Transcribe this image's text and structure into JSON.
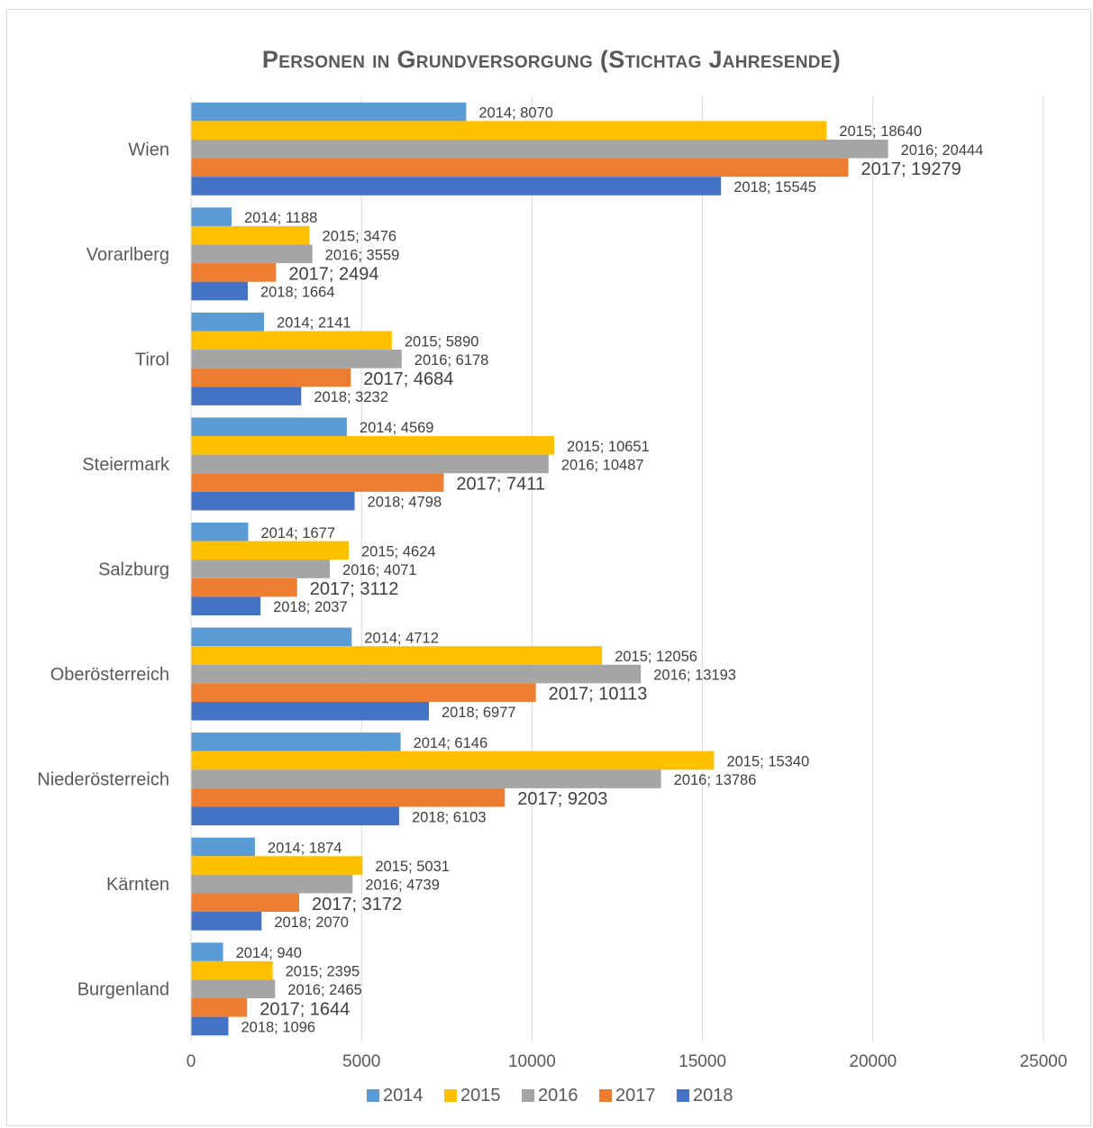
{
  "chart_data": {
    "type": "bar",
    "orientation": "horizontal",
    "title": "Personen in Grundversorgung (Stichtag Jahresende)",
    "categories": [
      "Wien",
      "Vorarlberg",
      "Tirol",
      "Steiermark",
      "Salzburg",
      "Oberösterreich",
      "Niederösterreich",
      "Kärnten",
      "Burgenland"
    ],
    "series": [
      {
        "name": "2014",
        "color": "#5b9bd5",
        "values": [
          8070,
          1188,
          2141,
          4569,
          1677,
          4712,
          6146,
          1874,
          940
        ]
      },
      {
        "name": "2015",
        "color": "#ffc000",
        "values": [
          18640,
          3476,
          5890,
          10651,
          4624,
          12056,
          15340,
          5031,
          2395
        ]
      },
      {
        "name": "2016",
        "color": "#a5a5a5",
        "values": [
          20444,
          3559,
          6178,
          10487,
          4071,
          13193,
          13786,
          4739,
          2465
        ]
      },
      {
        "name": "2017",
        "color": "#ed7d31",
        "values": [
          19279,
          2494,
          4684,
          7411,
          3112,
          10113,
          9203,
          3172,
          1644
        ]
      },
      {
        "name": "2018",
        "color": "#4472c4",
        "values": [
          15545,
          1664,
          3232,
          4798,
          2037,
          6977,
          6103,
          2070,
          1096
        ]
      }
    ],
    "xlim": [
      0,
      25000
    ],
    "xticks": [
      0,
      5000,
      10000,
      15000,
      20000,
      25000
    ],
    "grid": "vertical",
    "legend": "bottom",
    "data_label_format": "series; value"
  }
}
